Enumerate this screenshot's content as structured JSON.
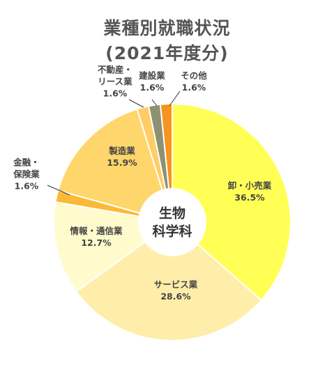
{
  "title": [
    "業種別就職状況",
    "(2021年度分)"
  ],
  "center_label": [
    "生物",
    "科学科"
  ],
  "chart_data": {
    "type": "pie",
    "style": "donut",
    "title": "業種別就職状況 (2021年度分)",
    "slices": [
      {
        "name": "卸・小売業",
        "value": 36.5,
        "label": "36.5%",
        "color": "#FFFF55"
      },
      {
        "name": "サービス業",
        "value": 28.6,
        "label": "28.6%",
        "color": "#FFEDAA"
      },
      {
        "name": "情報・通信業",
        "value": 12.7,
        "label": "12.7%",
        "color": "#FFFBCC"
      },
      {
        "name": "金融・保険業",
        "value": 1.6,
        "label": "1.6%",
        "color": "#FBB935"
      },
      {
        "name": "製造業",
        "value": 15.9,
        "label": "15.9%",
        "color": "#FFD66B"
      },
      {
        "name": "不動産・リース業",
        "value": 1.6,
        "label": "1.6%",
        "color": "#FFCC66"
      },
      {
        "name": "建設業",
        "value": 1.6,
        "label": "1.6%",
        "color": "#8E9170"
      },
      {
        "name": "その他",
        "value": 1.6,
        "label": "1.6%",
        "color": "#F7931E"
      }
    ]
  },
  "slice_labels": [
    {
      "lines": [
        "卸・小売業"
      ],
      "pct": "36.5%"
    },
    {
      "lines": [
        "サービス業"
      ],
      "pct": "28.6%"
    },
    {
      "lines": [
        "情報・通信業"
      ],
      "pct": "12.7%"
    },
    {
      "lines": [
        "金融・",
        "保険業"
      ],
      "pct": "1.6%"
    },
    {
      "lines": [
        "製造業"
      ],
      "pct": "15.9%"
    },
    {
      "lines": [
        "不動産・",
        "リース業"
      ],
      "pct": "1.6%"
    },
    {
      "lines": [
        "建設業"
      ],
      "pct": "1.6%"
    },
    {
      "lines": [
        "その他"
      ],
      "pct": "1.6%"
    }
  ]
}
